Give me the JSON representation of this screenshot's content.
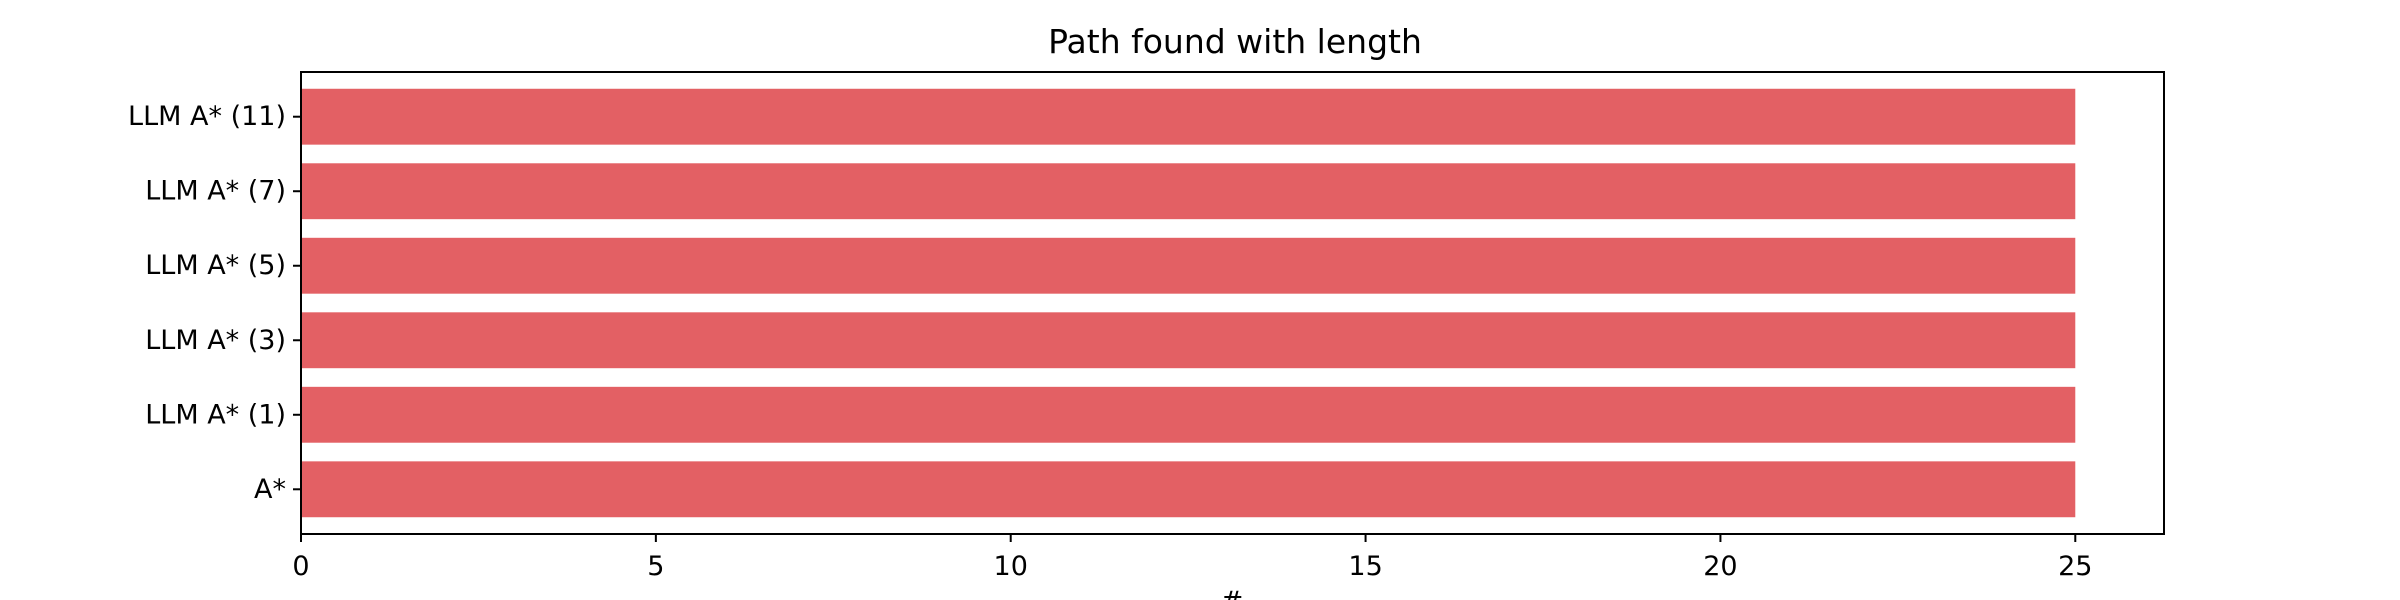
{
  "chart_data": {
    "type": "bar",
    "orientation": "horizontal",
    "title": "Path found with length",
    "xlabel": "#",
    "ylabel": "",
    "categories": [
      "A*",
      "LLM A* (1)",
      "LLM A* (3)",
      "LLM A* (5)",
      "LLM A* (7)",
      "LLM A* (11)"
    ],
    "values": [
      25,
      25,
      25,
      25,
      25,
      25
    ],
    "xlim": [
      0,
      26.25
    ],
    "xticks": [
      0,
      5,
      10,
      15,
      20,
      25
    ],
    "xtick_labels": [
      "0",
      "5",
      "10",
      "15",
      "20",
      "25"
    ],
    "grid": false,
    "legend": "none",
    "bar_color": "#e36064"
  }
}
